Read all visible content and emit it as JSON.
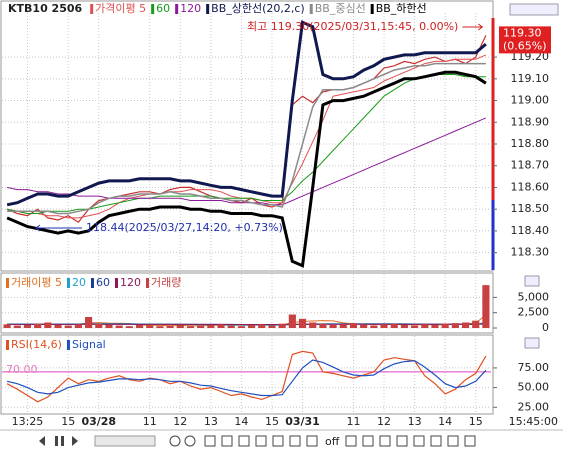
{
  "chart_data": [
    {
      "type": "line",
      "title": "KTB10 2506",
      "categories": [
        null,
        null,
        "13:25",
        null,
        null,
        null,
        "15",
        null,
        null,
        "03/28",
        null,
        null,
        null,
        null,
        "11",
        null,
        null,
        "12",
        null,
        null,
        "13",
        null,
        null,
        "14",
        null,
        null,
        "15",
        null,
        null,
        "03/31",
        null,
        null,
        null,
        null,
        "11",
        null,
        null,
        "12",
        null,
        null,
        "13",
        null,
        null,
        "14",
        null,
        null,
        "15",
        null
      ],
      "time_label": "15:45:00",
      "ylim": [
        118.22,
        119.38
      ],
      "yticks": [
        {
          "value": 119.2,
          "label": "119.20"
        },
        {
          "value": 119.1,
          "label": "119.10"
        },
        {
          "value": 119.0,
          "label": "119.00"
        },
        {
          "value": 118.9,
          "label": "118.90"
        },
        {
          "value": 118.8,
          "label": "118.80"
        },
        {
          "value": 118.7,
          "label": "118.70"
        },
        {
          "value": 118.6,
          "label": "118.60"
        },
        {
          "value": 118.5,
          "label": "118.50"
        },
        {
          "value": 118.4,
          "label": "118.40"
        },
        {
          "value": 118.3,
          "label": "118.30"
        }
      ],
      "grid": true,
      "last_price": {
        "value": 119.3,
        "label": "119.30"
      },
      "change_label": "(0.65%)",
      "annotations": [
        "최고 119.30(2025/03/31,15:45, 0.00%)",
        "118.44(2025/03/27,14:20, +0.73%)"
      ],
      "series": [
        {
          "color": "#c83030",
          "width": 1.2,
          "values": [
            118.5,
            118.48,
            118.47,
            118.5,
            118.46,
            118.45,
            118.47,
            118.44,
            118.5,
            118.54,
            118.55,
            118.56,
            118.57,
            118.58,
            118.58,
            118.57,
            118.59,
            118.6,
            118.6,
            118.58,
            118.56,
            118.55,
            118.54,
            118.53,
            118.55,
            118.52,
            118.51,
            118.53,
            118.98,
            119.02,
            118.99,
            119.04,
            119.05,
            119.05,
            119.06,
            119.08,
            119.1,
            119.15,
            119.16,
            119.18,
            119.17,
            119.19,
            119.2,
            119.18,
            119.19,
            119.17,
            119.2,
            119.3
          ]
        },
        {
          "name": "가격이평 5",
          "color": "#e05050",
          "width": 1,
          "values": [
            118.5,
            118.49,
            118.48,
            118.48,
            118.47,
            118.47,
            118.46,
            118.46,
            118.47,
            118.48,
            118.5,
            118.53,
            118.55,
            118.56,
            118.57,
            118.57,
            118.58,
            118.58,
            118.59,
            118.59,
            118.59,
            118.58,
            118.56,
            118.55,
            118.55,
            118.54,
            118.53,
            118.53,
            118.62,
            118.71,
            118.81,
            118.91,
            119.02,
            119.03,
            119.04,
            119.05,
            119.06,
            119.09,
            119.11,
            119.13,
            119.15,
            119.17,
            119.18,
            119.18,
            119.19,
            119.19,
            119.19,
            119.21
          ]
        },
        {
          "name": "60",
          "color": "#1a9a1a",
          "width": 1,
          "values": [
            118.5,
            118.49,
            118.48,
            118.48,
            118.49,
            118.49,
            118.49,
            118.5,
            118.5,
            118.51,
            118.52,
            118.53,
            118.54,
            118.55,
            118.55,
            118.56,
            118.56,
            118.56,
            118.56,
            118.56,
            118.56,
            118.55,
            118.55,
            118.55,
            118.55,
            118.54,
            118.54,
            118.54,
            118.58,
            118.63,
            118.67,
            118.72,
            118.77,
            118.82,
            118.87,
            118.92,
            118.97,
            119.02,
            119.05,
            119.08,
            119.1,
            119.11,
            119.12,
            119.12,
            119.12,
            119.11,
            119.11,
            119.11
          ]
        },
        {
          "name": "120",
          "color": "#8a1a9a",
          "width": 1,
          "values": [
            118.6,
            118.59,
            118.59,
            118.58,
            118.58,
            118.57,
            118.57,
            118.56,
            118.56,
            118.56,
            118.55,
            118.55,
            118.55,
            118.55,
            118.55,
            118.55,
            118.55,
            118.55,
            118.54,
            118.54,
            118.54,
            118.54,
            118.53,
            118.53,
            118.53,
            118.53,
            118.52,
            118.52,
            118.54,
            118.56,
            118.58,
            118.6,
            118.62,
            118.64,
            118.66,
            118.68,
            118.7,
            118.72,
            118.74,
            118.76,
            118.78,
            118.8,
            118.82,
            118.84,
            118.86,
            118.88,
            118.9,
            118.92
          ]
        },
        {
          "name": "BB_상한선(20,2,c)",
          "color": "#101850",
          "width": 3,
          "values": [
            118.52,
            118.53,
            118.55,
            118.57,
            118.57,
            118.56,
            118.56,
            118.58,
            118.6,
            118.62,
            118.63,
            118.63,
            118.63,
            118.64,
            118.64,
            118.64,
            118.64,
            118.63,
            118.63,
            118.62,
            118.61,
            118.6,
            118.6,
            118.59,
            118.58,
            118.57,
            118.56,
            118.56,
            119.0,
            119.36,
            119.34,
            119.12,
            119.1,
            119.1,
            119.11,
            119.14,
            119.16,
            119.19,
            119.2,
            119.21,
            119.21,
            119.22,
            119.22,
            119.22,
            119.22,
            119.22,
            119.22,
            119.26
          ]
        },
        {
          "name": "BB_중심선",
          "color": "#8a8a8a",
          "width": 1.5,
          "values": [
            118.49,
            118.49,
            118.49,
            118.49,
            118.49,
            118.48,
            118.48,
            118.49,
            118.5,
            118.53,
            118.55,
            118.56,
            118.56,
            118.57,
            118.57,
            118.57,
            118.58,
            118.57,
            118.57,
            118.56,
            118.55,
            118.55,
            118.54,
            118.54,
            118.53,
            118.52,
            118.52,
            118.51,
            118.63,
            118.8,
            118.97,
            119.05,
            119.05,
            119.05,
            119.06,
            119.08,
            119.1,
            119.12,
            119.14,
            119.15,
            119.16,
            119.16,
            119.17,
            119.17,
            119.17,
            119.17,
            119.17,
            119.17
          ]
        },
        {
          "name": "BB_하한선",
          "color": "#000000",
          "width": 3,
          "values": [
            118.46,
            118.44,
            118.42,
            118.41,
            118.4,
            118.39,
            118.4,
            118.39,
            118.4,
            118.44,
            118.47,
            118.48,
            118.49,
            118.5,
            118.5,
            118.51,
            118.51,
            118.51,
            118.5,
            118.5,
            118.49,
            118.49,
            118.48,
            118.48,
            118.48,
            118.47,
            118.47,
            118.46,
            118.26,
            118.24,
            118.6,
            118.98,
            119.0,
            119.0,
            119.01,
            119.02,
            119.04,
            119.06,
            119.08,
            119.1,
            119.1,
            119.11,
            119.12,
            119.13,
            119.13,
            119.12,
            119.11,
            119.08
          ]
        }
      ]
    },
    {
      "type": "bar",
      "ylim": [
        0,
        8000
      ],
      "yticks": [
        {
          "value": 5000,
          "label": "5,000"
        },
        {
          "value": 2500,
          "label": "2,500"
        },
        0
      ],
      "grid": true,
      "series": [
        {
          "name": "거래이평 5",
          "color": "#e07020",
          "width": 1,
          "values": [
            600,
            600,
            620,
            600,
            620,
            620,
            580,
            620,
            840,
            880,
            800,
            780,
            740,
            480,
            460,
            420,
            380,
            420,
            380,
            380,
            420,
            460,
            440,
            420,
            460,
            480,
            480,
            500,
            880,
            1080,
            1140,
            1200,
            1160,
            840,
            700,
            620,
            560,
            580,
            600,
            540,
            520,
            560,
            540,
            540,
            600,
            700,
            820,
            2120
          ]
        },
        {
          "name": "20",
          "color": "#20a0d0",
          "width": 1,
          "values": [
            650,
            650,
            650,
            640,
            640,
            640,
            650,
            650,
            700,
            700,
            700,
            690,
            680,
            660,
            640,
            620,
            600,
            580,
            560,
            540,
            520,
            510,
            500,
            490,
            480,
            480,
            480,
            480,
            560,
            620,
            660,
            680,
            690,
            700,
            700,
            700,
            700,
            690,
            690,
            680,
            660,
            640,
            620,
            600,
            590,
            590,
            620,
            900
          ]
        },
        {
          "name": "60",
          "color": "#1a3aa0",
          "width": 1,
          "values": [
            620,
            620,
            620,
            620,
            620,
            620,
            620,
            620,
            630,
            630,
            630,
            630,
            630,
            620,
            620,
            610,
            610,
            600,
            600,
            590,
            590,
            580,
            580,
            570,
            570,
            570,
            560,
            560,
            580,
            600,
            610,
            620,
            630,
            630,
            630,
            630,
            630,
            630,
            630,
            620,
            620,
            620,
            610,
            610,
            610,
            610,
            620,
            700
          ]
        },
        {
          "name": "120",
          "color": "#8a1a5a",
          "width": 1,
          "values": [
            580,
            580,
            580,
            580,
            580,
            580,
            580,
            580,
            585,
            585,
            585,
            585,
            585,
            585,
            585,
            585,
            585,
            580,
            580,
            580,
            580,
            580,
            575,
            575,
            575,
            575,
            575,
            575,
            585,
            590,
            595,
            600,
            600,
            600,
            600,
            600,
            600,
            600,
            600,
            600,
            600,
            600,
            600,
            600,
            600,
            600,
            605,
            640
          ]
        },
        {
          "name": "거래량",
          "type": "bar",
          "color": "#c84040",
          "values": [
            600,
            400,
            500,
            700,
            900,
            500,
            400,
            600,
            1800,
            700,
            500,
            400,
            300,
            500,
            400,
            300,
            400,
            500,
            300,
            400,
            500,
            600,
            400,
            300,
            500,
            600,
            400,
            700,
            2200,
            1500,
            900,
            700,
            500,
            600,
            800,
            500,
            400,
            600,
            700,
            500,
            400,
            600,
            500,
            700,
            800,
            900,
            1200,
            7000
          ]
        }
      ]
    },
    {
      "type": "line",
      "ylim": [
        19,
        113
      ],
      "yticks": [
        {
          "value": 75,
          "label": "75.00"
        },
        {
          "value": 50,
          "label": "50.00"
        },
        {
          "value": 25,
          "label": "25.00"
        }
      ],
      "grid": true,
      "levels": [
        {
          "value": 70,
          "label": "70.00"
        }
      ],
      "series": [
        {
          "name": "RSI(14,6)",
          "color": "#e05020",
          "width": 1.2,
          "values": [
            55,
            48,
            40,
            32,
            38,
            50,
            62,
            55,
            60,
            58,
            62,
            65,
            60,
            58,
            62,
            60,
            55,
            58,
            52,
            48,
            50,
            45,
            40,
            42,
            38,
            35,
            40,
            45,
            92,
            96,
            94,
            70,
            68,
            65,
            62,
            66,
            70,
            85,
            88,
            86,
            84,
            65,
            55,
            42,
            48,
            60,
            68,
            90
          ]
        },
        {
          "name": "Signal",
          "color": "#2050c0",
          "width": 1.2,
          "values": [
            58,
            55,
            50,
            44,
            42,
            44,
            50,
            53,
            56,
            57,
            59,
            61,
            61,
            60,
            61,
            60,
            58,
            58,
            56,
            53,
            52,
            49,
            46,
            44,
            42,
            40,
            40,
            41,
            58,
            75,
            85,
            82,
            76,
            70,
            66,
            65,
            66,
            74,
            80,
            83,
            84,
            76,
            66,
            55,
            50,
            52,
            58,
            72
          ]
        }
      ]
    }
  ],
  "toolbar_label": "off"
}
